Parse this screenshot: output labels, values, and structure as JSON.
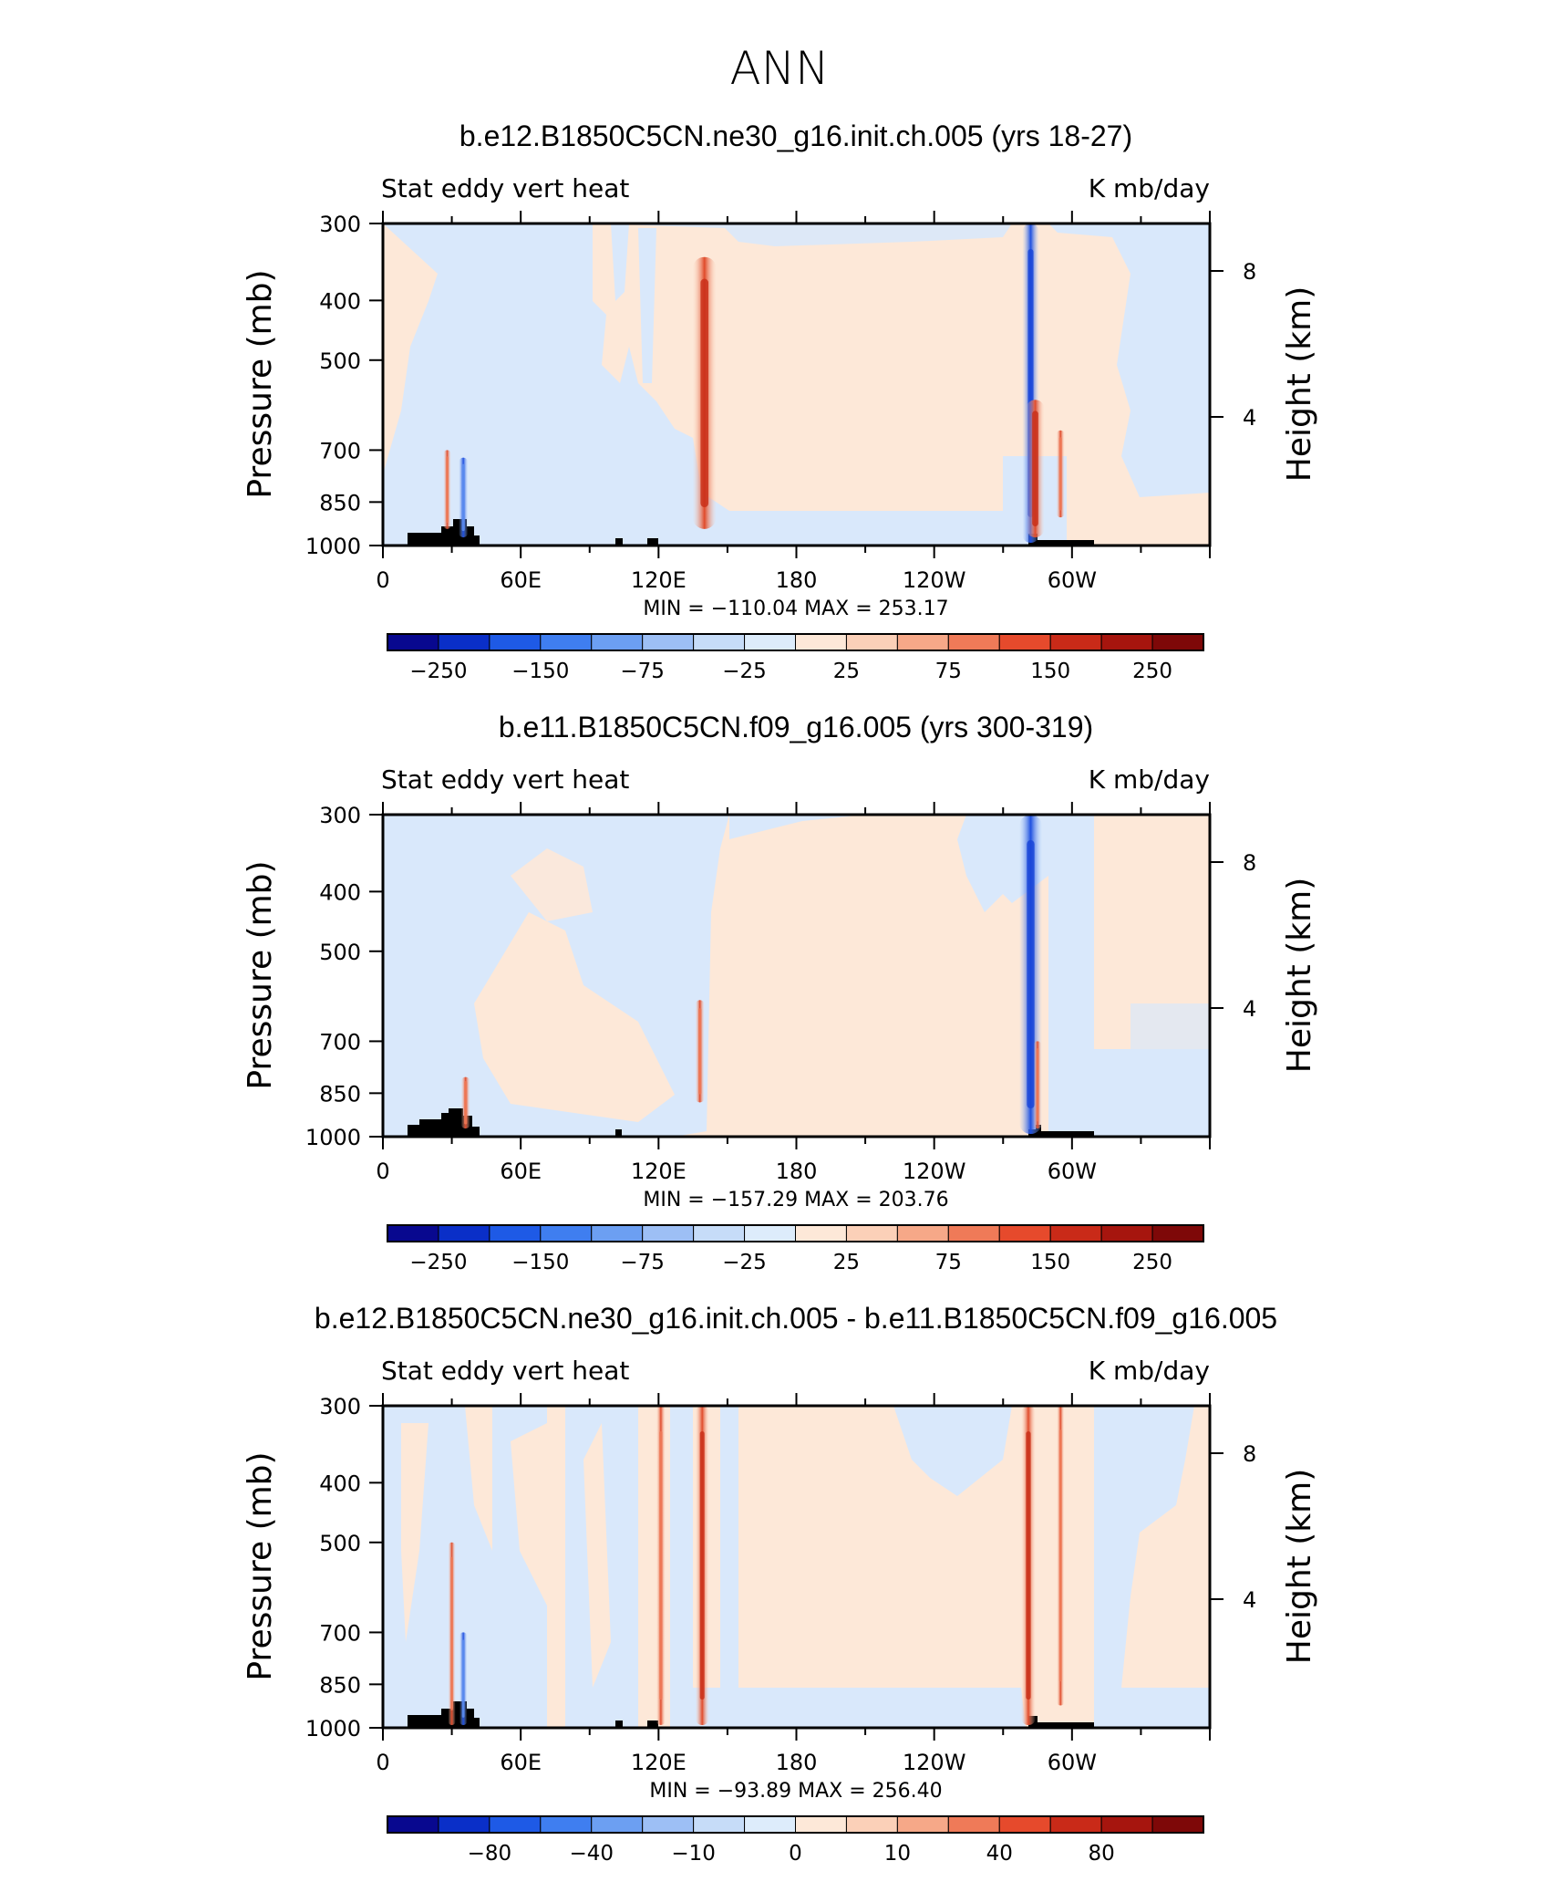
{
  "figure_title": "ANN",
  "colors": {
    "palette": [
      "#08088f",
      "#0a2fc8",
      "#1e5ae6",
      "#3f7ef0",
      "#6c9ff2",
      "#9dbff5",
      "#c6dcf8",
      "#ddecfb",
      "#fde8d8",
      "#fbd0b8",
      "#f6a888",
      "#ef7a58",
      "#e64a2c",
      "#c92a18",
      "#a6150e",
      "#7e0808"
    ]
  },
  "chart_data": [
    {
      "type": "contour",
      "title": "b.e12.B1850C5CN.ne30_g16.init.ch.005 (yrs 18-27)",
      "left_label": "Stat eddy vert heat",
      "right_label": "K mb/day",
      "ylabel": "Pressure (mb)",
      "y2label": "Height (km)",
      "x_ticks": [
        "0",
        "60E",
        "120E",
        "180",
        "120W",
        "60W"
      ],
      "x_tick_values": [
        0,
        60,
        120,
        180,
        240,
        300
      ],
      "xlim": [
        0,
        360
      ],
      "y_ticks": [
        "300",
        "400",
        "500",
        "700",
        "850",
        "1000"
      ],
      "y_tick_values": [
        300,
        400,
        500,
        700,
        850,
        1000
      ],
      "ylim": [
        1000,
        300
      ],
      "y_scale": "log",
      "y2_ticks": [
        "8",
        "4"
      ],
      "y2_tick_values": [
        8,
        4
      ],
      "min_max": "MIN = −110.04   MAX = 253.17",
      "colorbar_labels": [
        "−250",
        "−150",
        "−75",
        "−25",
        "25",
        "75",
        "150",
        "250"
      ],
      "features": [
        {
          "lon": 140,
          "p_top": 340,
          "p_bottom": 940,
          "value": 160
        },
        {
          "lon": 282,
          "p_top": 300,
          "p_bottom": 990,
          "value": -110
        },
        {
          "lon": 284,
          "p_top": 580,
          "p_bottom": 970,
          "value": 120
        },
        {
          "lon": 295,
          "p_top": 650,
          "p_bottom": 900,
          "value": 55
        },
        {
          "lon": 35,
          "p_top": 720,
          "p_bottom": 970,
          "value": -60
        },
        {
          "lon": 28,
          "p_top": 700,
          "p_bottom": 940,
          "value": 50
        }
      ]
    },
    {
      "type": "contour",
      "title": "b.e11.B1850C5CN.f09_g16.005 (yrs 300-319)",
      "left_label": "Stat eddy vert heat",
      "right_label": "K mb/day",
      "ylabel": "Pressure (mb)",
      "y2label": "Height (km)",
      "x_ticks": [
        "0",
        "60E",
        "120E",
        "180",
        "120W",
        "60W"
      ],
      "x_tick_values": [
        0,
        60,
        120,
        180,
        240,
        300
      ],
      "xlim": [
        0,
        360
      ],
      "y_ticks": [
        "300",
        "400",
        "500",
        "700",
        "850",
        "1000"
      ],
      "y_tick_values": [
        300,
        400,
        500,
        700,
        850,
        1000
      ],
      "ylim": [
        1000,
        300
      ],
      "y_scale": "log",
      "y2_ticks": [
        "8",
        "4"
      ],
      "y2_tick_values": [
        8,
        4
      ],
      "min_max": "MIN = −157.29   MAX = 203.76",
      "colorbar_labels": [
        "−250",
        "−150",
        "−75",
        "−25",
        "25",
        "75",
        "150",
        "250"
      ],
      "features": [
        {
          "lon": 138,
          "p_top": 600,
          "p_bottom": 880,
          "value": 60
        },
        {
          "lon": 282,
          "p_top": 300,
          "p_bottom": 990,
          "value": -150
        },
        {
          "lon": 285,
          "p_top": 700,
          "p_bottom": 970,
          "value": 50
        },
        {
          "lon": 36,
          "p_top": 800,
          "p_bottom": 970,
          "value": 60
        }
      ]
    },
    {
      "type": "contour",
      "title": "b.e12.B1850C5CN.ne30_g16.init.ch.005 - b.e11.B1850C5CN.f09_g16.005",
      "left_label": "Stat eddy vert heat",
      "right_label": "K mb/day",
      "ylabel": "Pressure (mb)",
      "y2label": "Height (km)",
      "x_ticks": [
        "0",
        "60E",
        "120E",
        "180",
        "120W",
        "60W"
      ],
      "x_tick_values": [
        0,
        60,
        120,
        180,
        240,
        300
      ],
      "xlim": [
        0,
        360
      ],
      "y_ticks": [
        "300",
        "400",
        "500",
        "700",
        "850",
        "1000"
      ],
      "y_tick_values": [
        300,
        400,
        500,
        700,
        850,
        1000
      ],
      "ylim": [
        1000,
        300
      ],
      "y_scale": "log",
      "y2_ticks": [
        "8",
        "4"
      ],
      "y2_tick_values": [
        8,
        4
      ],
      "min_max": "MIN = −93.89   MAX = 256.40",
      "colorbar_labels": [
        "−80",
        "−40",
        "−10",
        "0",
        "10",
        "40",
        "80"
      ],
      "features": [
        {
          "lon": 139,
          "p_top": 300,
          "p_bottom": 990,
          "value": 90
        },
        {
          "lon": 121,
          "p_top": 300,
          "p_bottom": 990,
          "value": 60
        },
        {
          "lon": 281,
          "p_top": 300,
          "p_bottom": 990,
          "value": 95
        },
        {
          "lon": 295,
          "p_top": 300,
          "p_bottom": 920,
          "value": 50
        },
        {
          "lon": 35,
          "p_top": 700,
          "p_bottom": 990,
          "value": -50
        },
        {
          "lon": 30,
          "p_top": 500,
          "p_bottom": 990,
          "value": 30
        }
      ]
    }
  ]
}
